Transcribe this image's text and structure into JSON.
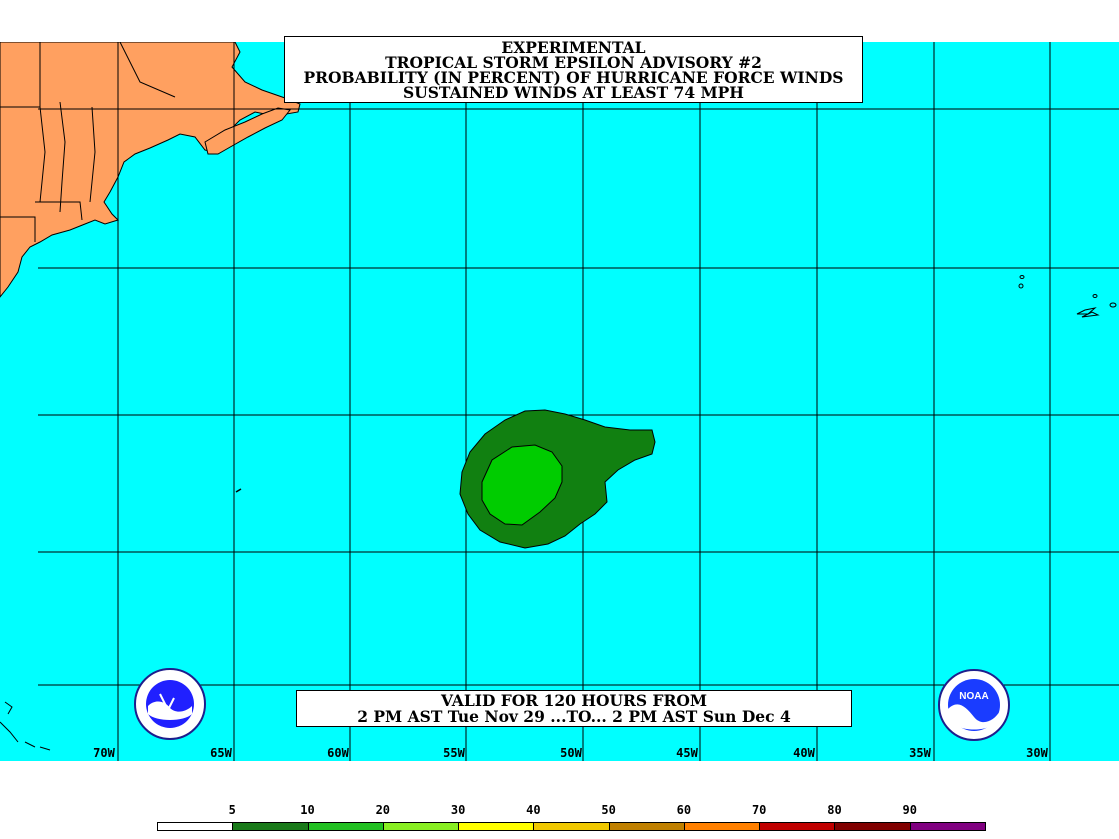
{
  "title": {
    "line1": "EXPERIMENTAL",
    "line2": "TROPICAL STORM EPSILON ADVISORY #2",
    "line3": "PROBABILITY (IN PERCENT) OF HURRICANE FORCE WINDS",
    "line4": "SUSTAINED WINDS AT LEAST 74 MPH"
  },
  "valid": {
    "line1": "VALID FOR 120 HOURS FROM",
    "line2": "2 PM AST Tue Nov 29 ...TO... 2 PM AST Sun Dec 4"
  },
  "longitude_labels": [
    "70W",
    "65W",
    "60W",
    "55W",
    "50W",
    "45W",
    "40W",
    "35W",
    "30W"
  ],
  "legend": {
    "thresholds": [
      "5",
      "10",
      "20",
      "30",
      "40",
      "50",
      "60",
      "70",
      "80",
      "90"
    ],
    "colors": [
      "#ffffff",
      "#1a7a1a",
      "#22c022",
      "#88ee22",
      "#ffff00",
      "#f0c800",
      "#c08000",
      "#ff8000",
      "#c00000",
      "#800000",
      "#800080"
    ]
  },
  "colors": {
    "ocean": "#00ffff",
    "land": "#ffa060",
    "prob_5_10": "#118011",
    "prob_10_20": "#00cc00"
  },
  "logos": {
    "left": "nws-logo",
    "right": "noaa-logo",
    "right_text": "NOAA"
  }
}
